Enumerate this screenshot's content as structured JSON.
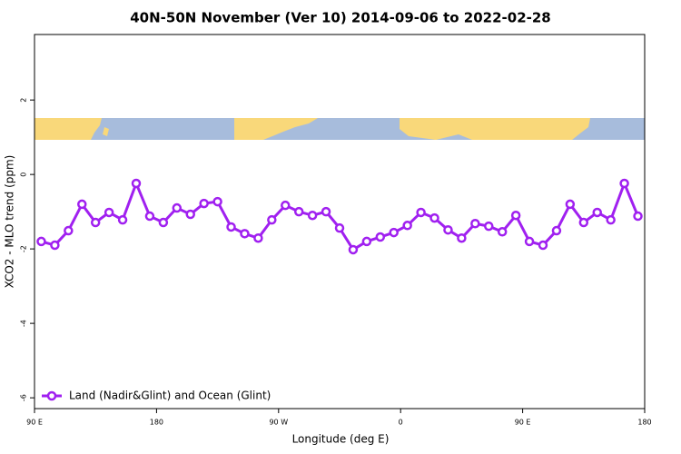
{
  "chart_data": {
    "type": "line",
    "title": "40N-50N November (Ver 10)   2014-09-06 to 2022-02-28",
    "x_label": "Longitude (deg E)",
    "y_label": "XCO2 - MLO trend (ppm)",
    "x": [
      95,
      105,
      115,
      125,
      135,
      145,
      155,
      165,
      175,
      185,
      195,
      205,
      215,
      225,
      235,
      245,
      255,
      265,
      275,
      285,
      295,
      305,
      315,
      325,
      335,
      345,
      355,
      365,
      375,
      385,
      395,
      405,
      415,
      425,
      435,
      445,
      455,
      465,
      475,
      485,
      495,
      505,
      515,
      525,
      535
    ],
    "series": [
      {
        "name": "Land (Nadir&Glint) and Ocean (Glint)",
        "color": "#a020f0",
        "values": [
          -1.8,
          -1.9,
          -1.51,
          -0.8,
          -1.29,
          -1.02,
          -1.22,
          -0.24,
          -1.12,
          -1.29,
          -0.9,
          -1.07,
          -0.78,
          -0.73,
          -1.41,
          -1.59,
          -1.71,
          -1.22,
          -0.83,
          -1.0,
          -1.1,
          -1.0,
          -1.44,
          -2.02,
          -1.8,
          -1.68,
          -1.56,
          -1.37,
          -1.02,
          -1.17,
          -1.49,
          -1.71,
          -1.32,
          -1.39,
          -1.54,
          -1.1,
          -1.8,
          -1.9,
          -1.51,
          -0.8,
          -1.29,
          -1.02,
          -1.22,
          -0.24,
          -1.12
        ]
      }
    ],
    "xlim": [
      90,
      540
    ],
    "xticks": [
      {
        "value": 90,
        "label": "90 E"
      },
      {
        "value": 180,
        "label": "180"
      },
      {
        "value": 270,
        "label": "90 W"
      },
      {
        "value": 360,
        "label": "0"
      },
      {
        "value": 450,
        "label": "90 E"
      },
      {
        "value": 540,
        "label": "180"
      }
    ],
    "ylim": [
      -6.29,
      3.76
    ],
    "yticks": [
      -6,
      -4,
      -2,
      0,
      2
    ],
    "legend": "bottom-left"
  }
}
